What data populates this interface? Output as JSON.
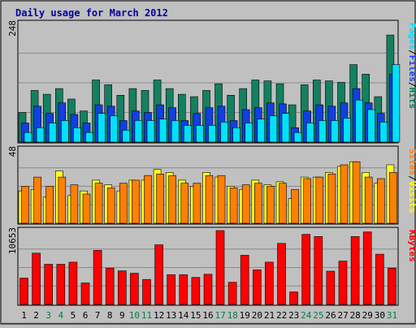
{
  "chart_data": {
    "type": "bar",
    "title": "Daily usage for March 2012",
    "categories": [
      "1",
      "2",
      "3",
      "4",
      "5",
      "6",
      "7",
      "8",
      "9",
      "10",
      "11",
      "12",
      "13",
      "14",
      "15",
      "16",
      "17",
      "18",
      "19",
      "20",
      "21",
      "22",
      "23",
      "24",
      "25",
      "26",
      "27",
      "28",
      "29",
      "30",
      "31"
    ],
    "weekend_days": [
      "3",
      "4",
      "10",
      "11",
      "17",
      "18",
      "24",
      "25",
      "31"
    ],
    "panels": [
      {
        "id": "hits",
        "ymax_label": "248",
        "ymax": 248,
        "legend": [
          "Pages",
          "/",
          "Files",
          "/",
          "Hits"
        ],
        "legend_colors": [
          "#00e0ff",
          "#000000",
          "#1040ff",
          "#000000",
          "#008060"
        ],
        "series": [
          {
            "name": "Hits",
            "color": "#148060",
            "values": [
              62,
              108,
              100,
              112,
              90,
              65,
              130,
              120,
              98,
              112,
              108,
              130,
              112,
              100,
              95,
              108,
              122,
              98,
              112,
              130,
              128,
              122,
              78,
              120,
              130,
              128,
              125,
              162,
              142,
              95,
              224
            ]
          },
          {
            "name": "Files",
            "color": "#1040e0",
            "values": [
              40,
              75,
              60,
              82,
              58,
              40,
              78,
              75,
              45,
              65,
              62,
              78,
              72,
              45,
              60,
              72,
              75,
              45,
              68,
              72,
              82,
              80,
              30,
              65,
              78,
              75,
              82,
              112,
              82,
              60,
              142
            ]
          },
          {
            "name": "Pages",
            "color": "#00e0ff",
            "values": [
              20,
              30,
              40,
              45,
              30,
              20,
              60,
              55,
              25,
              45,
              45,
              48,
              45,
              35,
              35,
              35,
              42,
              30,
              40,
              48,
              55,
              60,
              20,
              40,
              45,
              45,
              50,
              88,
              68,
              42,
              162
            ]
          }
        ]
      },
      {
        "id": "visits",
        "ymax_label": "48",
        "ymax": 48,
        "legend": [
          "Sites",
          "/",
          "Visits"
        ],
        "legend_colors": [
          "#ff8000",
          "#000000",
          "#ffff00"
        ],
        "series": [
          {
            "name": "Visits",
            "color": "#ffff20",
            "values": [
              21,
              22,
              17,
              34,
              18,
              21,
              28,
              25,
              21,
              28,
              28,
              35,
              33,
              28,
              24,
              33,
              30,
              24,
              22,
              28,
              25,
              27,
              16,
              30,
              30,
              33,
              37,
              40,
              33,
              26,
              38
            ]
          },
          {
            "name": "Sites",
            "color": "#ff8000",
            "values": [
              24,
              30,
              24,
              30,
              25,
              19,
              26,
              23,
              26,
              28,
              31,
              32,
              31,
              26,
              26,
              31,
              31,
              23,
              25,
              26,
              24,
              26,
              22,
              29,
              30,
              32,
              38,
              40,
              30,
              29,
              33
            ]
          }
        ]
      },
      {
        "id": "kbytes",
        "ymax_label": "10653",
        "ymax": 10653,
        "legend": [
          "KBytes"
        ],
        "legend_colors": [
          "#ff0000"
        ],
        "series": [
          {
            "name": "KBytes",
            "color": "#ff0000",
            "values": [
              3800,
              7400,
              5800,
              5800,
              6100,
              3100,
              7800,
              5250,
              4850,
              4500,
              3600,
              8600,
              4300,
              4300,
              3900,
              4350,
              10653,
              3200,
              7100,
              5000,
              6100,
              8800,
              1800,
              10100,
              9800,
              4800,
              6250,
              9800,
              10450,
              7250,
              5250
            ]
          }
        ]
      }
    ]
  }
}
